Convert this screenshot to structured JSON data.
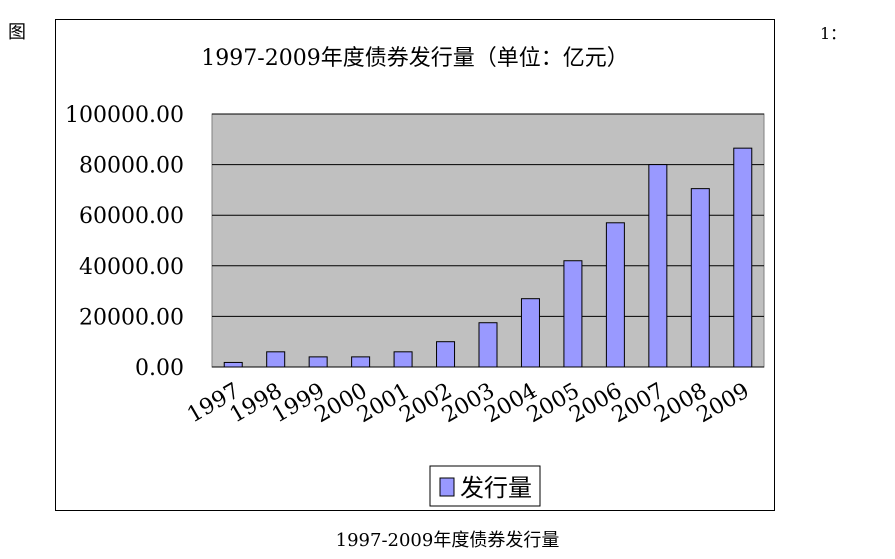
{
  "page": {
    "corner_left": "图",
    "corner_right": "1：",
    "caption": "1997-2009年度债券发行量"
  },
  "colors": {
    "plot_bg": "#c0c0c0",
    "bar_fill": "#9999ff",
    "bar_stroke": "#000000",
    "frame": "#000000"
  },
  "chart_data": {
    "type": "bar",
    "title": "1997-2009年度债券发行量（单位：亿元）",
    "categories": [
      "1997",
      "1998",
      "1999",
      "2000",
      "2001",
      "2002",
      "2003",
      "2004",
      "2005",
      "2006",
      "2007",
      "2008",
      "2009"
    ],
    "series": [
      {
        "name": "发行量",
        "values": [
          1800,
          6000,
          4000,
          4000,
          6000,
          10000,
          17500,
          27000,
          42000,
          57000,
          80000,
          70500,
          86500
        ]
      }
    ],
    "ylim": [
      0,
      100000
    ],
    "yticks": [
      "0.00",
      "20000.00",
      "40000.00",
      "60000.00",
      "80000.00",
      "100000.00"
    ],
    "ytick_values": [
      0,
      20000,
      40000,
      60000,
      80000,
      100000
    ],
    "grid": true,
    "legend_position": "bottom"
  }
}
